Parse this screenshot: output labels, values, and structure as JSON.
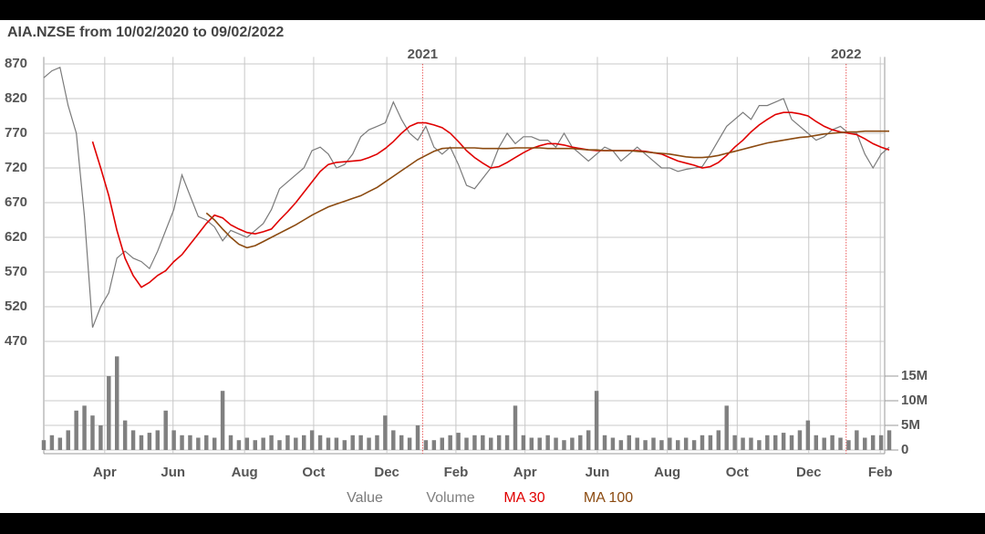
{
  "chart_data": {
    "type": "line",
    "title": "AIA.NZSE from 10/02/2020 to 09/02/2022",
    "xlim": [
      0,
      104
    ],
    "xticks": [
      {
        "value": 7.5,
        "label": "Apr"
      },
      {
        "value": 15.9,
        "label": "Jun"
      },
      {
        "value": 24.7,
        "label": "Aug"
      },
      {
        "value": 33.2,
        "label": "Oct"
      },
      {
        "value": 42.2,
        "label": "Dec"
      },
      {
        "value": 50.7,
        "label": "Feb"
      },
      {
        "value": 59.2,
        "label": "Apr"
      },
      {
        "value": 68.1,
        "label": "Jun"
      },
      {
        "value": 76.7,
        "label": "Aug"
      },
      {
        "value": 85.3,
        "label": "Oct"
      },
      {
        "value": 94.1,
        "label": "Dec"
      },
      {
        "value": 102.9,
        "label": "Feb"
      }
    ],
    "year_markers": [
      {
        "value": 46.6,
        "label": "2021"
      },
      {
        "value": 98.7,
        "label": "2022"
      }
    ],
    "ylim": [
      440,
      880
    ],
    "yticks": [
      870,
      820,
      770,
      720,
      670,
      620,
      570,
      520,
      470
    ],
    "y2lim": [
      0,
      20
    ],
    "y2ticks": [
      {
        "value": 15,
        "label": "15M"
      },
      {
        "value": 10,
        "label": "10M"
      },
      {
        "value": 5,
        "label": "5M"
      },
      0
    ],
    "grid": true,
    "series": [
      {
        "name": "Value",
        "color": "#7a7a7a",
        "axis": "y",
        "values": [
          850,
          860,
          865,
          810,
          770,
          650,
          490,
          520,
          540,
          590,
          600,
          590,
          585,
          575,
          600,
          630,
          660,
          710,
          680,
          650,
          645,
          635,
          615,
          630,
          625,
          620,
          630,
          640,
          660,
          690,
          700,
          710,
          720,
          745,
          750,
          740,
          720,
          725,
          740,
          765,
          775,
          780,
          785,
          815,
          790,
          770,
          760,
          780,
          750,
          740,
          750,
          725,
          695,
          690,
          705,
          720,
          750,
          770,
          755,
          765,
          765,
          760,
          760,
          750,
          770,
          750,
          740,
          730,
          740,
          750,
          745,
          730,
          740,
          750,
          740,
          730,
          720,
          720,
          715,
          718,
          720,
          722,
          740,
          760,
          780,
          790,
          800,
          790,
          810,
          810,
          815,
          820,
          790,
          780,
          770,
          760,
          765,
          775,
          780,
          770,
          770,
          740,
          720,
          740,
          750
        ]
      },
      {
        "name": "Volume",
        "color": "#808080",
        "axis": "y2",
        "type": "bar",
        "values": [
          2,
          3,
          2.5,
          4,
          8,
          9,
          7,
          5,
          15,
          19,
          6,
          4,
          3,
          3.5,
          4,
          8,
          4,
          3,
          3,
          2.5,
          3,
          2.5,
          12,
          3,
          2,
          2.5,
          2,
          2.5,
          3,
          2,
          3,
          2.5,
          3,
          4,
          3,
          2.5,
          2.5,
          2,
          3,
          3,
          2.5,
          3,
          7,
          4,
          3,
          2.5,
          5,
          2,
          2,
          2.5,
          3,
          3.5,
          2.5,
          3,
          3,
          2.5,
          3,
          3,
          9,
          3,
          2.5,
          2.5,
          3,
          2.5,
          2,
          2.5,
          3,
          4,
          12,
          3,
          2.5,
          2,
          3,
          2.5,
          2,
          2.5,
          2,
          2.5,
          2,
          2.5,
          2,
          3,
          3,
          4,
          9,
          3,
          2.5,
          2.5,
          2,
          3,
          3,
          3.5,
          3,
          4,
          6,
          3,
          2.5,
          3,
          2.5,
          2,
          4,
          2.5,
          3,
          3,
          4
        ]
      },
      {
        "name": "MA 30",
        "color": "#e00000",
        "axis": "y",
        "values": [
          null,
          null,
          null,
          null,
          null,
          null,
          758,
          720,
          680,
          630,
          590,
          565,
          548,
          555,
          565,
          572,
          585,
          595,
          610,
          625,
          640,
          652,
          648,
          638,
          632,
          627,
          625,
          628,
          632,
          645,
          657,
          670,
          685,
          700,
          715,
          725,
          728,
          729,
          730,
          731,
          735,
          740,
          748,
          758,
          770,
          780,
          785,
          785,
          782,
          778,
          770,
          758,
          745,
          735,
          727,
          720,
          722,
          728,
          735,
          742,
          748,
          752,
          755,
          755,
          753,
          750,
          748,
          746,
          745,
          745,
          745,
          745,
          745,
          745,
          744,
          742,
          740,
          735,
          730,
          727,
          724,
          720,
          722,
          728,
          738,
          750,
          760,
          772,
          782,
          790,
          797,
          800,
          800,
          798,
          795,
          787,
          780,
          775,
          772,
          770,
          768,
          762,
          755,
          750,
          746
        ]
      },
      {
        "name": "MA 100",
        "color": "#8b4a10",
        "axis": "y",
        "values": [
          null,
          null,
          null,
          null,
          null,
          null,
          null,
          null,
          null,
          null,
          null,
          null,
          null,
          null,
          null,
          null,
          null,
          null,
          null,
          null,
          655,
          645,
          632,
          620,
          610,
          605,
          608,
          614,
          620,
          626,
          632,
          638,
          645,
          652,
          658,
          664,
          668,
          672,
          676,
          680,
          686,
          692,
          700,
          708,
          716,
          724,
          732,
          738,
          744,
          748,
          749,
          749,
          749,
          749,
          748,
          748,
          748,
          748,
          749,
          749,
          749,
          749,
          748,
          748,
          748,
          748,
          747,
          746,
          746,
          745,
          745,
          745,
          745,
          744,
          743,
          742,
          741,
          740,
          738,
          736,
          735,
          735,
          736,
          738,
          741,
          744,
          747,
          750,
          753,
          756,
          758,
          760,
          762,
          764,
          765,
          767,
          769,
          770,
          771,
          772,
          772,
          773,
          773,
          773,
          773
        ]
      }
    ]
  }
}
